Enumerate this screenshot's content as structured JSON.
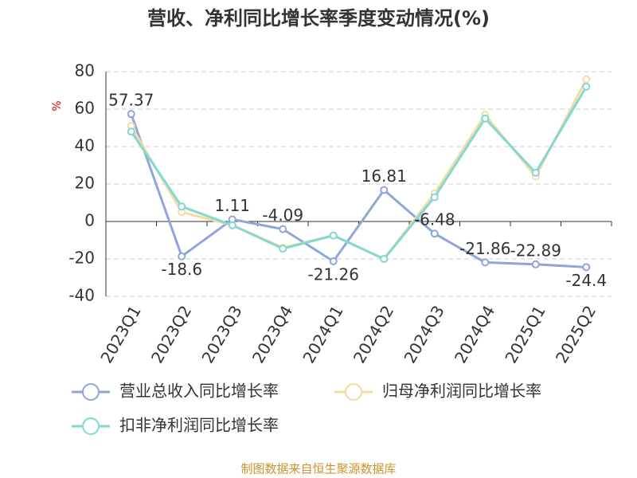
{
  "chart_data": {
    "type": "line",
    "title": "营收、净利同比增长率季度变动情况(%)",
    "y_label": "%",
    "source": "制图数据来自恒生聚源数据库",
    "categories": [
      "2023Q1",
      "2023Q2",
      "2023Q3",
      "2023Q4",
      "2024Q1",
      "2024Q2",
      "2024Q3",
      "2024Q4",
      "2025Q1",
      "2025Q2"
    ],
    "series": [
      {
        "name": "营业总收入同比增长率",
        "color": "#8ea6d9",
        "show_labels": true,
        "values": [
          57.37,
          -18.6,
          1.11,
          -4.09,
          -21.26,
          16.81,
          -6.48,
          -21.86,
          -22.89,
          -24.4
        ]
      },
      {
        "name": "归母净利润同比增长率",
        "color": "#f8d9a1",
        "show_labels": false,
        "values": [
          51,
          5,
          -2,
          -14,
          -7.5,
          -20,
          15,
          57,
          24,
          76
        ]
      },
      {
        "name": "扣非净利润同比增长率",
        "color": "#82d8d2",
        "show_labels": false,
        "values": [
          48,
          8,
          -2,
          -14.5,
          -7.5,
          -20,
          13,
          55,
          26,
          72
        ]
      }
    ],
    "ylim": [
      -40,
      80
    ],
    "yticks": [
      -40,
      -20,
      0,
      20,
      40,
      60,
      80
    ],
    "grid": true,
    "legend_position": "bottom"
  }
}
